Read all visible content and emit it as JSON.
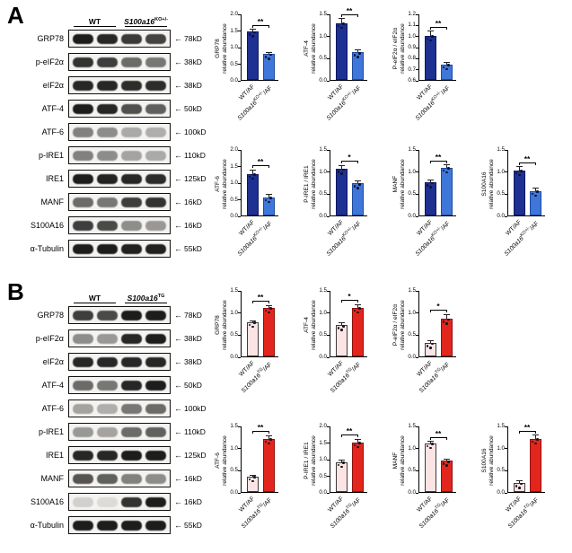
{
  "figure": {
    "arrow": "←"
  },
  "panels": [
    {
      "letter": "A",
      "header": {
        "wt": "WT",
        "geno_base": "S100a16",
        "geno_sup": "KO+/-"
      },
      "colors": {
        "bar1": "#1e3192",
        "bar1_border": "#0d1860",
        "bar2": "#3f76d9",
        "bar2_border": "#1e4a9e",
        "dot": "#0d1030"
      },
      "xlabels": {
        "first": "WT/AF",
        "geno_base": "S100a16",
        "geno_sup": "KO+/-",
        "suffix": "/AF"
      },
      "blot_rows": [
        {
          "label": "GRP78",
          "kd": "78kD",
          "bands": [
            0.95,
            0.9,
            0.82,
            0.78
          ]
        },
        {
          "label": "p-eIF2α",
          "kd": "38kD",
          "bands": [
            0.85,
            0.8,
            0.6,
            0.55
          ]
        },
        {
          "label": "eIF2α",
          "kd": "38kD",
          "bands": [
            0.9,
            0.9,
            0.88,
            0.88
          ]
        },
        {
          "label": "ATF-4",
          "kd": "50kD",
          "bands": [
            0.95,
            0.9,
            0.72,
            0.65
          ]
        },
        {
          "label": "ATF-6",
          "kd": "100kD",
          "bands": [
            0.5,
            0.45,
            0.32,
            0.3
          ]
        },
        {
          "label": "p-IRE1",
          "kd": "110kD",
          "bands": [
            0.5,
            0.45,
            0.35,
            0.32
          ]
        },
        {
          "label": "IRE1",
          "kd": "125kD",
          "bands": [
            0.95,
            0.92,
            0.9,
            0.88
          ]
        },
        {
          "label": "MANF",
          "kd": "16kD",
          "bands": [
            0.6,
            0.55,
            0.8,
            0.85
          ]
        },
        {
          "label": "S100A16",
          "kd": "16kD",
          "bands": [
            0.8,
            0.75,
            0.45,
            0.4
          ]
        },
        {
          "label": "α-Tubulin",
          "kd": "55kD",
          "bands": [
            0.95,
            0.95,
            0.93,
            0.93
          ]
        }
      ],
      "chart_data": [
        {
          "type": "bar",
          "name": "GRP78",
          "ylabel1": "GRP78",
          "ylabel2": "relative abundance",
          "ymin": 0.0,
          "ymax": 2.0,
          "yticks": [
            "0.0",
            "0.5",
            "1.0",
            "1.5",
            "2.0"
          ],
          "values": [
            1.45,
            0.78
          ],
          "errors": [
            0.1,
            0.06
          ],
          "sig": "**"
        },
        {
          "type": "bar",
          "name": "ATF-4",
          "ylabel1": "ATF-4",
          "ylabel2": "relative abundance",
          "ymin": 0.0,
          "ymax": 1.5,
          "yticks": [
            "0.0",
            "0.5",
            "1.0",
            "1.5"
          ],
          "values": [
            1.28,
            0.62
          ],
          "errors": [
            0.12,
            0.08
          ],
          "sig": "**"
        },
        {
          "type": "bar",
          "name": "P-eIF2α / eIF2α",
          "ylabel1": "P-eIF2α / eIF2α",
          "ylabel2": "relative abundance",
          "ymin": 0.6,
          "ymax": 1.2,
          "yticks": [
            "0.6",
            "0.7",
            "0.8",
            "0.9",
            "1.0",
            "1.1",
            "1.2"
          ],
          "values": [
            1.0,
            0.74
          ],
          "errors": [
            0.05,
            0.03
          ],
          "sig": "**"
        },
        {
          "type": "bar",
          "name": "ATF-6",
          "ylabel1": "ATF-6",
          "ylabel2": "relative abundance",
          "ymin": 0.0,
          "ymax": 2.0,
          "yticks": [
            "0.0",
            "0.5",
            "1.0",
            "1.5",
            "2.0"
          ],
          "values": [
            1.25,
            0.55
          ],
          "errors": [
            0.15,
            0.1
          ],
          "sig": "**"
        },
        {
          "type": "bar",
          "name": "P-IRE1 / IRE1",
          "ylabel1": "P-IRE1 / IRE1",
          "ylabel2": "relative abundance",
          "ymin": 0.0,
          "ymax": 1.5,
          "yticks": [
            "0.0",
            "0.5",
            "1.0",
            "1.5"
          ],
          "values": [
            1.05,
            0.72
          ],
          "errors": [
            0.1,
            0.08
          ],
          "sig": "*"
        },
        {
          "type": "bar",
          "name": "MANF",
          "ylabel1": "MANF",
          "ylabel2": "relative abundance",
          "ymin": 0.0,
          "ymax": 1.5,
          "yticks": [
            "0.0",
            "0.5",
            "1.0",
            "1.5"
          ],
          "values": [
            0.75,
            1.08
          ],
          "errors": [
            0.07,
            0.08
          ],
          "sig": "**"
        },
        {
          "type": "bar",
          "name": "S100A16",
          "ylabel1": "S100A16",
          "ylabel2": "relative abundance",
          "ymin": 0.0,
          "ymax": 1.5,
          "yticks": [
            "0.0",
            "0.5",
            "1.0",
            "1.5"
          ],
          "values": [
            1.02,
            0.55
          ],
          "errors": [
            0.1,
            0.09
          ],
          "sig": "**"
        }
      ]
    },
    {
      "letter": "B",
      "header": {
        "wt": "WT",
        "geno_base": "S100a16",
        "geno_sup": "TG"
      },
      "colors": {
        "bar1": "#fbe4e3",
        "bar1_border": "#3a3a3a",
        "bar2": "#e2261d",
        "bar2_border": "#8f100a",
        "dot": "#15151f"
      },
      "xlabels": {
        "first": "WT/AF",
        "geno_base": "S100a16",
        "geno_sup": "TG",
        "suffix": "/AF"
      },
      "blot_rows": [
        {
          "label": "GRP78",
          "kd": "78kD",
          "bands": [
            0.8,
            0.75,
            0.95,
            0.95
          ]
        },
        {
          "label": "p-eIF2α",
          "kd": "38kD",
          "bands": [
            0.45,
            0.4,
            0.9,
            0.95
          ]
        },
        {
          "label": "eIF2α",
          "kd": "38kD",
          "bands": [
            0.9,
            0.9,
            0.9,
            0.9
          ]
        },
        {
          "label": "ATF-4",
          "kd": "50kD",
          "bands": [
            0.6,
            0.55,
            0.9,
            0.95
          ]
        },
        {
          "label": "ATF-6",
          "kd": "100kD",
          "bands": [
            0.35,
            0.3,
            0.55,
            0.6
          ]
        },
        {
          "label": "p-IRE1",
          "kd": "110kD",
          "bands": [
            0.4,
            0.35,
            0.6,
            0.65
          ]
        },
        {
          "label": "IRE1",
          "kd": "125kD",
          "bands": [
            0.9,
            0.9,
            0.95,
            0.95
          ]
        },
        {
          "label": "MANF",
          "kd": "16kD",
          "bands": [
            0.7,
            0.65,
            0.5,
            0.45
          ]
        },
        {
          "label": "S100A16",
          "kd": "16kD",
          "bands": [
            0.15,
            0.1,
            0.85,
            0.95
          ]
        },
        {
          "label": "α-Tubulin",
          "kd": "55kD",
          "bands": [
            0.95,
            0.95,
            0.95,
            0.95
          ]
        }
      ],
      "chart_data": [
        {
          "type": "bar",
          "name": "GRP78",
          "ylabel1": "GRP78",
          "ylabel2": "relative abundance",
          "ymin": 0.0,
          "ymax": 1.5,
          "yticks": [
            "0.0",
            "0.5",
            "1.0",
            "1.5"
          ],
          "values": [
            0.78,
            1.1
          ],
          "errors": [
            0.05,
            0.07
          ],
          "sig": "**"
        },
        {
          "type": "bar",
          "name": "ATF-4",
          "ylabel1": "ATF-4",
          "ylabel2": "relative abundance",
          "ymin": 0.0,
          "ymax": 1.5,
          "yticks": [
            "0.0",
            "0.5",
            "1.0",
            "1.5"
          ],
          "values": [
            0.7,
            1.1
          ],
          "errors": [
            0.08,
            0.09
          ],
          "sig": "*"
        },
        {
          "type": "bar",
          "name": "P-eIF2α / eIF2α",
          "ylabel1": "P-eIF2α / eIF2α",
          "ylabel2": "relative abundance",
          "ymin": 0.0,
          "ymax": 1.5,
          "yticks": [
            "0.0",
            "0.5",
            "1.0",
            "1.5"
          ],
          "values": [
            0.3,
            0.85
          ],
          "errors": [
            0.07,
            0.12
          ],
          "sig": "*"
        },
        {
          "type": "bar",
          "name": "ATF-6",
          "ylabel1": "ATF-6",
          "ylabel2": "relative abundance",
          "ymin": 0.0,
          "ymax": 1.5,
          "yticks": [
            "0.0",
            "0.5",
            "1.0",
            "1.5"
          ],
          "values": [
            0.35,
            1.2
          ],
          "errors": [
            0.05,
            0.09
          ],
          "sig": "**"
        },
        {
          "type": "bar",
          "name": "P-IRE1 / IRE1",
          "ylabel1": "P-IRE1 / IRE1",
          "ylabel2": "relative abundance",
          "ymin": 0.0,
          "ymax": 2.0,
          "yticks": [
            "0.0",
            "0.5",
            "1.0",
            "1.5",
            "2.0"
          ],
          "values": [
            0.9,
            1.5
          ],
          "errors": [
            0.1,
            0.12
          ],
          "sig": "**"
        },
        {
          "type": "bar",
          "name": "MANF",
          "ylabel1": "MANF",
          "ylabel2": "relative abundance",
          "ymin": 0.0,
          "ymax": 1.5,
          "yticks": [
            "0.0",
            "0.5",
            "1.0",
            "1.5"
          ],
          "values": [
            1.1,
            0.7
          ],
          "errors": [
            0.06,
            0.07
          ],
          "sig": "**"
        },
        {
          "type": "bar",
          "name": "S100A16",
          "ylabel1": "S100A16",
          "ylabel2": "relative abundance",
          "ymin": 0.0,
          "ymax": 1.5,
          "yticks": [
            "0.0",
            "0.5",
            "1.0",
            "1.5"
          ],
          "values": [
            0.2,
            1.2
          ],
          "errors": [
            0.07,
            0.1
          ],
          "sig": "**"
        }
      ]
    }
  ]
}
